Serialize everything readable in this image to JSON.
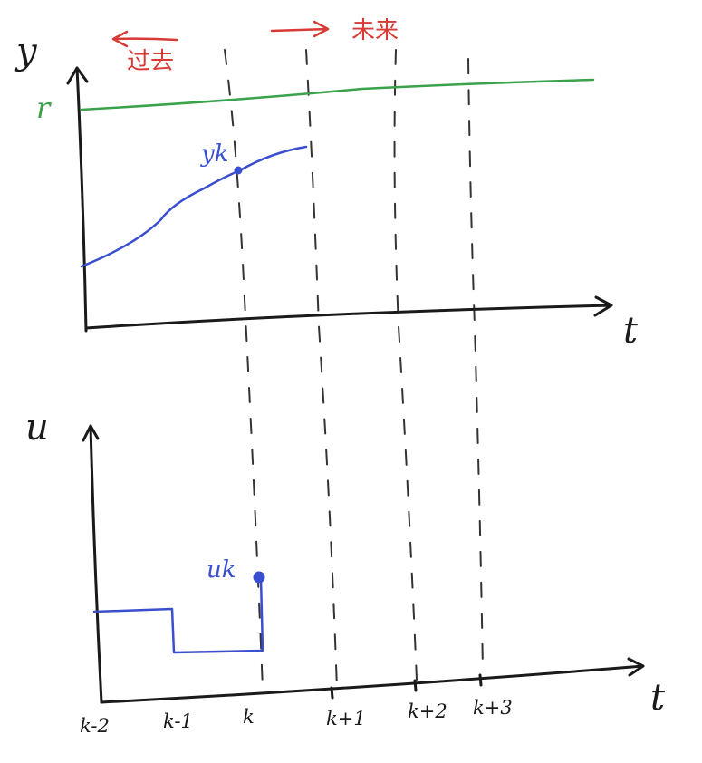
{
  "colors": {
    "ink": "#1a1a1a",
    "reference": "#3aa24a",
    "output": "#3a4ed0",
    "time_direction": "#d83a35"
  },
  "top_plot": {
    "y_axis_label": "y",
    "x_axis_label": "t",
    "reference_label": "r",
    "point_label": "yk"
  },
  "direction_labels": {
    "past": "过去",
    "future": "未来"
  },
  "bottom_plot": {
    "y_axis_label": "u",
    "x_axis_label": "t",
    "point_label": "uk",
    "ticks": [
      "k-2",
      "k-1",
      "k",
      "k+1",
      "k+2",
      "k+3"
    ]
  }
}
